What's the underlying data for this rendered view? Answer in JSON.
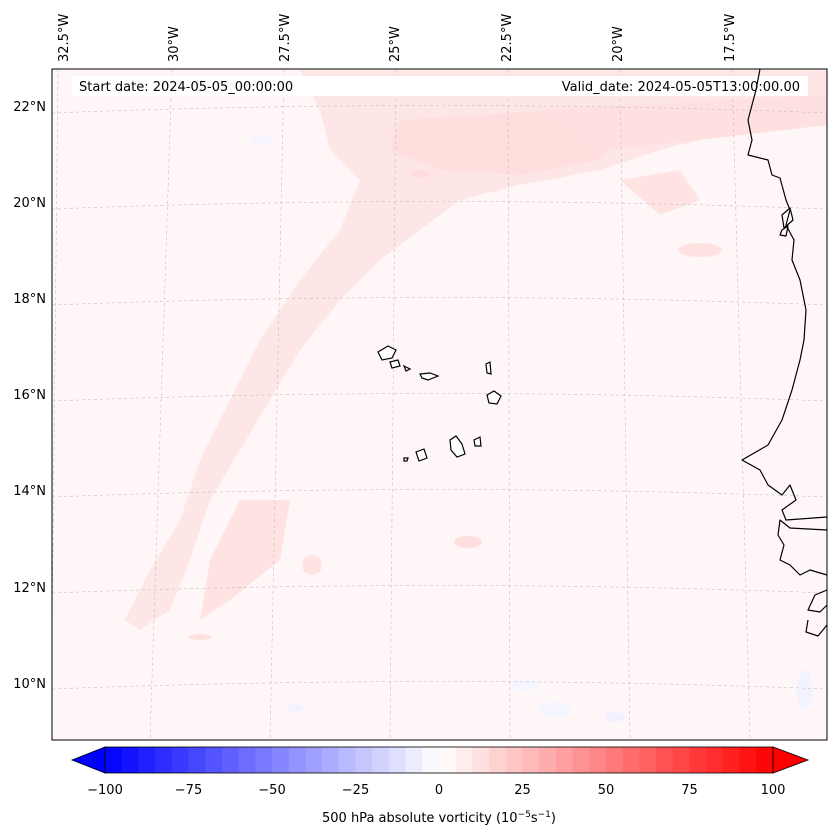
{
  "header": {
    "start_date": "Start date: 2024-05-05_00:00:00",
    "valid_date": "Valid_date: 2024-05-05T13:00:00.00"
  },
  "longitude_labels": [
    "32.5°W",
    "30°W",
    "27.5°W",
    "25°W",
    "22.5°W",
    "20°W",
    "17.5°W"
  ],
  "latitude_labels": [
    "22°N",
    "20°N",
    "18°N",
    "16°N",
    "14°N",
    "12°N",
    "10°N"
  ],
  "colorbar": {
    "ticks": [
      "−100",
      "−75",
      "−50",
      "−25",
      "0",
      "25",
      "50",
      "75",
      "100"
    ],
    "title": "500 hPa absolute vorticity (10",
    "title_exp1": "−5",
    "title_mid": "s",
    "title_exp2": "−1",
    "title_end": ")",
    "min": -100,
    "max": 100,
    "step": 5,
    "colors": {
      "negative": "#0000ff",
      "zero": "#ffffff",
      "positive": "#ff0000"
    }
  }
}
